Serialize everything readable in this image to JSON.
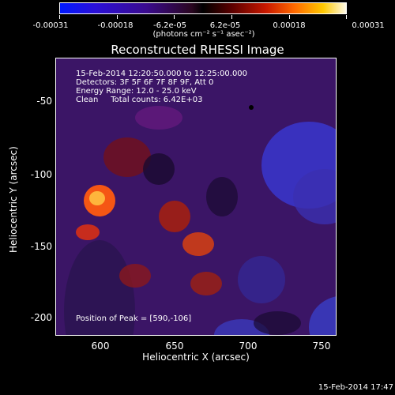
{
  "colorbar": {
    "ticks": [
      "-0.00031",
      "-0.00018",
      "-6.2e-05",
      "6.2e-05",
      "0.00018",
      "0.00031"
    ],
    "units": "(photons cm⁻² s⁻¹ asec⁻²)"
  },
  "title": "Reconstructed RHESSI Image",
  "info": {
    "time_range": "15-Feb-2014 12:20:50.000 to 12:25:00.000",
    "detectors": "Detectors: 3F 5F 6F 7F 8F 9F, Att 0",
    "energy": "Energy Range: 12.0 - 25.0 keV",
    "clean": "Clean     Total counts: 6.42E+03",
    "peak": "Position of Peak = [590,-106]"
  },
  "axes": {
    "xlabel": "Heliocentric X (arcsec)",
    "ylabel": "Heliocentric Y (arcsec)",
    "xticks": [
      "600",
      "650",
      "700",
      "750"
    ],
    "yticks": [
      "-50",
      "-100",
      "-150",
      "-200"
    ]
  },
  "datestamp": "15-Feb-2014 17:47",
  "colors": {
    "background": "#000000",
    "text": "#ffffff",
    "marker": "#000000"
  }
}
